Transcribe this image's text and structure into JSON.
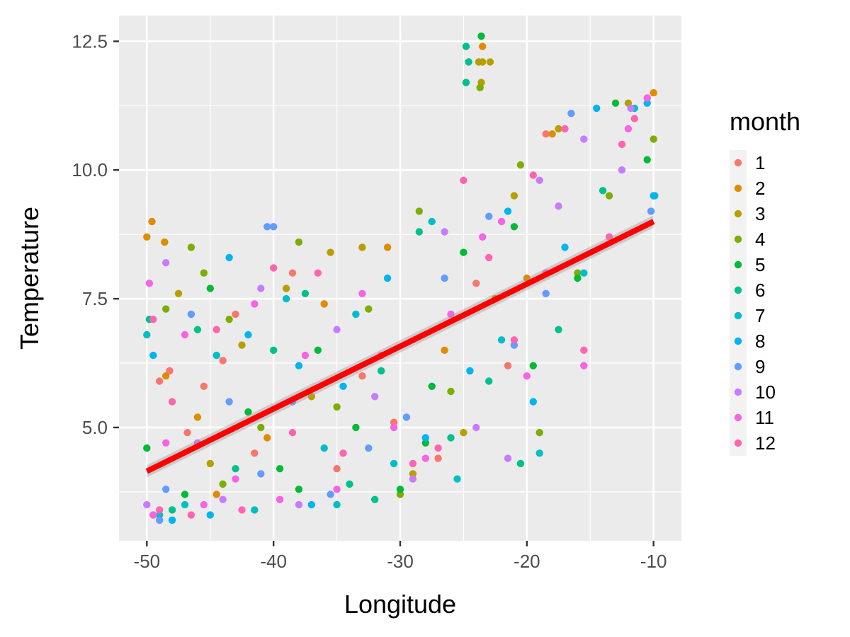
{
  "chart_data": {
    "type": "scatter",
    "title": "",
    "xlabel": "Longitude",
    "ylabel": "Temperature",
    "xlim": [
      -52.2,
      -7.8
    ],
    "ylim": [
      2.8,
      13.0
    ],
    "x_ticks": [
      -50,
      -40,
      -30,
      -20,
      -10
    ],
    "x_tick_labels": [
      "-50",
      "-40",
      "-30",
      "-20",
      "-10"
    ],
    "y_ticks": [
      5.0,
      7.5,
      10.0,
      12.5
    ],
    "y_tick_labels": [
      "5.0",
      "7.5",
      "10.0",
      "12.5"
    ],
    "grid": true,
    "legend": {
      "title": "month",
      "position": "right",
      "entries": [
        {
          "label": "1",
          "color": "#F8766D"
        },
        {
          "label": "2",
          "color": "#DE8C00"
        },
        {
          "label": "3",
          "color": "#B79F00"
        },
        {
          "label": "4",
          "color": "#7CAE00"
        },
        {
          "label": "5",
          "color": "#00BA38"
        },
        {
          "label": "6",
          "color": "#00C08B"
        },
        {
          "label": "7",
          "color": "#00BFC4"
        },
        {
          "label": "8",
          "color": "#00B4F0"
        },
        {
          "label": "9",
          "color": "#619CFF"
        },
        {
          "label": "10",
          "color": "#C77CFF"
        },
        {
          "label": "11",
          "color": "#F564E3"
        },
        {
          "label": "12",
          "color": "#FF64B0"
        }
      ]
    },
    "trend_line": {
      "color": "#FF0000",
      "x": [
        -50,
        -10
      ],
      "y": [
        4.15,
        9.0
      ],
      "band_halfwidth": 0.12
    },
    "series": [
      {
        "name": "1",
        "color": "#F8766D",
        "points": [
          [
            -49.5,
            3.3
          ],
          [
            -48.2,
            6.1
          ],
          [
            -46.8,
            4.9
          ],
          [
            -45.5,
            5.8
          ],
          [
            -44.0,
            6.3
          ],
          [
            -41.5,
            4.5
          ],
          [
            -38.5,
            8.0
          ],
          [
            -35.0,
            4.2
          ],
          [
            -30.5,
            5.1
          ],
          [
            -27.0,
            4.4
          ],
          [
            -24.0,
            7.8
          ],
          [
            -21.5,
            6.2
          ],
          [
            -18.5,
            10.7
          ],
          [
            -49.0,
            5.9
          ],
          [
            -43.0,
            7.2
          ],
          [
            -33.0,
            6.0
          ]
        ]
      },
      {
        "name": "2",
        "color": "#DE8C00",
        "points": [
          [
            -50.0,
            8.7
          ],
          [
            -49.6,
            9.0
          ],
          [
            -48.6,
            8.6
          ],
          [
            -48.5,
            6.0
          ],
          [
            -46.0,
            5.2
          ],
          [
            -40.5,
            4.8
          ],
          [
            -36.0,
            7.4
          ],
          [
            -31.0,
            8.5
          ],
          [
            -26.5,
            6.5
          ],
          [
            -23.5,
            12.4
          ],
          [
            -20.0,
            7.9
          ],
          [
            -18.0,
            10.7
          ],
          [
            -10.0,
            11.5
          ],
          [
            -44.5,
            3.7
          ]
        ]
      },
      {
        "name": "3",
        "color": "#B79F00",
        "points": [
          [
            -23.8,
            12.1
          ],
          [
            -23.5,
            12.1
          ],
          [
            -22.9,
            12.1
          ],
          [
            -23.6,
            11.7
          ],
          [
            -47.5,
            7.6
          ],
          [
            -42.5,
            6.6
          ],
          [
            -39.0,
            7.7
          ],
          [
            -35.5,
            8.4
          ],
          [
            -33.0,
            8.5
          ],
          [
            -29.0,
            4.1
          ],
          [
            -25.0,
            4.9
          ],
          [
            -21.0,
            9.5
          ],
          [
            -17.5,
            10.8
          ],
          [
            -12.0,
            11.3
          ],
          [
            -45.0,
            4.3
          ],
          [
            -37.0,
            5.6
          ]
        ]
      },
      {
        "name": "4",
        "color": "#7CAE00",
        "points": [
          [
            -23.7,
            11.6
          ],
          [
            -46.5,
            8.5
          ],
          [
            -45.5,
            8.0
          ],
          [
            -43.5,
            7.1
          ],
          [
            -41.0,
            5.0
          ],
          [
            -38.0,
            8.6
          ],
          [
            -35.0,
            5.4
          ],
          [
            -32.5,
            7.3
          ],
          [
            -28.5,
            9.2
          ],
          [
            -26.0,
            5.7
          ],
          [
            -22.5,
            7.5
          ],
          [
            -20.5,
            10.1
          ],
          [
            -19.0,
            4.9
          ],
          [
            -16.0,
            8.0
          ],
          [
            -13.5,
            9.5
          ],
          [
            -10.0,
            10.6
          ],
          [
            -48.5,
            7.3
          ],
          [
            -44.0,
            3.9
          ],
          [
            -30.0,
            3.7
          ]
        ]
      },
      {
        "name": "5",
        "color": "#00BA38",
        "points": [
          [
            -23.6,
            12.6
          ],
          [
            -50.0,
            4.6
          ],
          [
            -47.0,
            3.7
          ],
          [
            -45.0,
            7.7
          ],
          [
            -42.0,
            5.3
          ],
          [
            -39.5,
            4.2
          ],
          [
            -36.5,
            6.5
          ],
          [
            -33.5,
            5.0
          ],
          [
            -30.0,
            3.8
          ],
          [
            -27.5,
            5.8
          ],
          [
            -25.0,
            8.4
          ],
          [
            -21.0,
            8.9
          ],
          [
            -19.5,
            6.2
          ],
          [
            -16.0,
            7.9
          ],
          [
            -13.0,
            11.3
          ],
          [
            -10.5,
            10.2
          ],
          [
            -28.0,
            4.7
          ],
          [
            -38.0,
            3.8
          ]
        ]
      },
      {
        "name": "6",
        "color": "#00C08B",
        "points": [
          [
            -24.8,
            12.4
          ],
          [
            -24.6,
            12.1
          ],
          [
            -24.8,
            11.7
          ],
          [
            -49.8,
            7.1
          ],
          [
            -48.0,
            3.4
          ],
          [
            -46.0,
            6.9
          ],
          [
            -43.0,
            4.2
          ],
          [
            -40.0,
            6.5
          ],
          [
            -37.5,
            7.6
          ],
          [
            -34.0,
            3.9
          ],
          [
            -31.5,
            6.1
          ],
          [
            -28.5,
            8.8
          ],
          [
            -26.0,
            4.8
          ],
          [
            -23.0,
            5.9
          ],
          [
            -20.5,
            4.3
          ],
          [
            -17.5,
            6.9
          ],
          [
            -14.0,
            9.6
          ],
          [
            -32.0,
            3.6
          ]
        ]
      },
      {
        "name": "7",
        "color": "#00BFC4",
        "points": [
          [
            -50.0,
            6.8
          ],
          [
            -49.0,
            3.3
          ],
          [
            -47.0,
            3.5
          ],
          [
            -44.5,
            6.4
          ],
          [
            -41.5,
            3.4
          ],
          [
            -39.0,
            7.5
          ],
          [
            -36.0,
            4.6
          ],
          [
            -33.5,
            7.2
          ],
          [
            -30.5,
            4.3
          ],
          [
            -27.5,
            9.0
          ],
          [
            -25.5,
            4.0
          ],
          [
            -22.0,
            6.7
          ],
          [
            -19.0,
            4.5
          ],
          [
            -15.5,
            8.0
          ],
          [
            -11.5,
            11.2
          ],
          [
            -9.9,
            9.5
          ],
          [
            -35.0,
            3.5
          ]
        ]
      },
      {
        "name": "8",
        "color": "#00B4F0",
        "points": [
          [
            -49.5,
            6.4
          ],
          [
            -48.0,
            3.2
          ],
          [
            -45.0,
            3.3
          ],
          [
            -42.0,
            6.8
          ],
          [
            -38.0,
            6.2
          ],
          [
            -37.0,
            3.5
          ],
          [
            -34.5,
            5.8
          ],
          [
            -31.0,
            7.9
          ],
          [
            -28.0,
            4.8
          ],
          [
            -24.5,
            6.1
          ],
          [
            -21.5,
            9.2
          ],
          [
            -19.5,
            5.5
          ],
          [
            -17.0,
            8.5
          ],
          [
            -14.5,
            11.2
          ],
          [
            -10.0,
            9.5
          ],
          [
            -10.5,
            11.3
          ],
          [
            -43.5,
            8.3
          ]
        ]
      },
      {
        "name": "9",
        "color": "#619CFF",
        "points": [
          [
            -40.0,
            8.9
          ],
          [
            -40.5,
            8.9
          ],
          [
            -48.5,
            3.8
          ],
          [
            -46.5,
            7.2
          ],
          [
            -43.5,
            5.5
          ],
          [
            -41.0,
            4.1
          ],
          [
            -38.5,
            5.5
          ],
          [
            -35.5,
            3.7
          ],
          [
            -32.5,
            4.6
          ],
          [
            -29.5,
            5.2
          ],
          [
            -26.5,
            7.9
          ],
          [
            -23.0,
            9.1
          ],
          [
            -21.0,
            6.6
          ],
          [
            -18.5,
            7.6
          ],
          [
            -16.5,
            11.1
          ],
          [
            -10.2,
            9.2
          ],
          [
            -49.0,
            3.2
          ]
        ]
      },
      {
        "name": "10",
        "color": "#C77CFF",
        "points": [
          [
            -50.0,
            3.5
          ],
          [
            -48.5,
            8.2
          ],
          [
            -46.0,
            4.7
          ],
          [
            -44.0,
            3.6
          ],
          [
            -41.0,
            7.7
          ],
          [
            -38.0,
            3.5
          ],
          [
            -35.0,
            6.9
          ],
          [
            -32.0,
            5.6
          ],
          [
            -29.0,
            4.0
          ],
          [
            -26.5,
            8.8
          ],
          [
            -24.0,
            5.0
          ],
          [
            -21.5,
            4.4
          ],
          [
            -19.0,
            9.8
          ],
          [
            -17.5,
            9.3
          ],
          [
            -15.5,
            10.6
          ],
          [
            -12.5,
            10.0
          ],
          [
            -11.8,
            11.2
          ]
        ]
      },
      {
        "name": "11",
        "color": "#F564E3",
        "points": [
          [
            -49.8,
            7.8
          ],
          [
            -49.5,
            3.3
          ],
          [
            -48.5,
            4.7
          ],
          [
            -47.0,
            6.8
          ],
          [
            -45.5,
            3.5
          ],
          [
            -43.0,
            4.0
          ],
          [
            -41.5,
            7.4
          ],
          [
            -39.5,
            3.6
          ],
          [
            -37.5,
            6.4
          ],
          [
            -35.0,
            3.8
          ],
          [
            -33.0,
            7.6
          ],
          [
            -30.5,
            5.0
          ],
          [
            -28.0,
            4.4
          ],
          [
            -26.0,
            7.2
          ],
          [
            -23.5,
            8.7
          ],
          [
            -22.0,
            9.0
          ],
          [
            -20.0,
            6.0
          ],
          [
            -18.5,
            8.0
          ],
          [
            -15.5,
            6.2
          ],
          [
            -12.0,
            10.8
          ],
          [
            -10.5,
            11.4
          ]
        ]
      },
      {
        "name": "12",
        "color": "#FF64B0",
        "points": [
          [
            -49.5,
            7.1
          ],
          [
            -49.0,
            3.4
          ],
          [
            -48.0,
            5.5
          ],
          [
            -46.5,
            3.3
          ],
          [
            -44.5,
            6.9
          ],
          [
            -42.5,
            3.4
          ],
          [
            -40.0,
            8.1
          ],
          [
            -38.5,
            4.9
          ],
          [
            -36.5,
            8.0
          ],
          [
            -34.5,
            4.5
          ],
          [
            -31.5,
            6.4
          ],
          [
            -29.0,
            4.3
          ],
          [
            -27.0,
            4.6
          ],
          [
            -25.0,
            9.8
          ],
          [
            -23.0,
            8.3
          ],
          [
            -21.0,
            6.7
          ],
          [
            -19.5,
            9.9
          ],
          [
            -17.0,
            10.8
          ],
          [
            -15.5,
            6.5
          ],
          [
            -13.5,
            8.7
          ],
          [
            -12.5,
            10.5
          ],
          [
            -11.5,
            11.0
          ]
        ]
      }
    ]
  }
}
